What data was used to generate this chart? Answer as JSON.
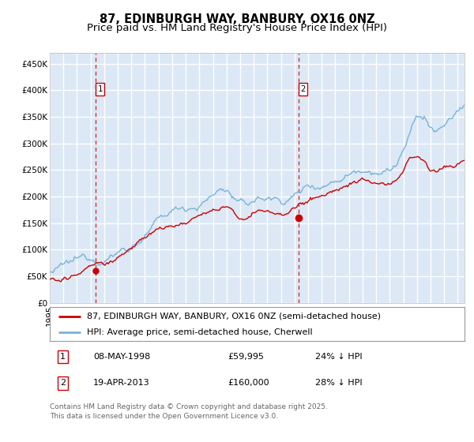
{
  "title": "87, EDINBURGH WAY, BANBURY, OX16 0NZ",
  "subtitle": "Price paid vs. HM Land Registry's House Price Index (HPI)",
  "ylim": [
    0,
    470000
  ],
  "yticks": [
    0,
    50000,
    100000,
    150000,
    200000,
    250000,
    300000,
    350000,
    400000,
    450000
  ],
  "ytick_labels": [
    "£0",
    "£50K",
    "£100K",
    "£150K",
    "£200K",
    "£250K",
    "£300K",
    "£350K",
    "£400K",
    "£450K"
  ],
  "xlim_start": 1995.0,
  "xlim_end": 2025.5,
  "plot_bg_color": "#dce8f5",
  "grid_color": "#ffffff",
  "hpi_line_color": "#7ab3d9",
  "price_line_color": "#cc0000",
  "transaction1_date": 1998.36,
  "transaction1_price": 59995,
  "transaction2_date": 2013.3,
  "transaction2_price": 160000,
  "legend_line1": "87, EDINBURGH WAY, BANBURY, OX16 0NZ (semi-detached house)",
  "legend_line2": "HPI: Average price, semi-detached house, Cherwell",
  "annotation1_text": "08-MAY-1998",
  "annotation1_price": "£59,995",
  "annotation1_hpi": "24% ↓ HPI",
  "annotation2_text": "19-APR-2013",
  "annotation2_price": "£160,000",
  "annotation2_hpi": "28% ↓ HPI",
  "footer": "Contains HM Land Registry data © Crown copyright and database right 2025.\nThis data is licensed under the Open Government Licence v3.0.",
  "title_fontsize": 10.5,
  "subtitle_fontsize": 9.5,
  "tick_fontsize": 7.5,
  "legend_fontsize": 8,
  "annotation_fontsize": 8,
  "footer_fontsize": 6.5,
  "hpi_anchors_x": [
    1995.0,
    1996.0,
    1997.0,
    1998.0,
    1999.0,
    2000.0,
    2001.0,
    2002.0,
    2003.0,
    2004.0,
    2005.0,
    2006.0,
    2007.0,
    2007.8,
    2008.5,
    2009.0,
    2009.5,
    2010.0,
    2011.0,
    2012.0,
    2013.0,
    2014.0,
    2015.0,
    2016.0,
    2017.0,
    2018.0,
    2019.0,
    2020.0,
    2021.0,
    2021.5,
    2022.0,
    2022.5,
    2023.0,
    2023.5,
    2024.0,
    2024.5,
    2025.0,
    2025.5
  ],
  "hpi_anchors_y": [
    57000,
    61000,
    65000,
    71000,
    80000,
    94000,
    108000,
    128000,
    148000,
    162000,
    172000,
    182000,
    198000,
    210000,
    195000,
    178000,
    172000,
    183000,
    185000,
    183000,
    193000,
    210000,
    218000,
    230000,
    248000,
    262000,
    268000,
    268000,
    305000,
    330000,
    355000,
    358000,
    338000,
    328000,
    340000,
    348000,
    360000,
    372000
  ],
  "price_anchors_x": [
    1995.0,
    1996.0,
    1997.0,
    1998.0,
    1999.0,
    2000.0,
    2001.0,
    2002.0,
    2003.0,
    2004.0,
    2005.0,
    2006.0,
    2007.0,
    2007.8,
    2008.5,
    2009.0,
    2009.5,
    2010.0,
    2011.0,
    2012.0,
    2013.0,
    2014.0,
    2015.0,
    2016.0,
    2017.0,
    2018.0,
    2019.0,
    2020.0,
    2021.0,
    2021.5,
    2022.0,
    2022.5,
    2023.0,
    2023.5,
    2024.0,
    2024.5,
    2025.0,
    2025.5
  ],
  "price_anchors_y": [
    44000,
    47000,
    51000,
    56000,
    64000,
    73000,
    86000,
    103000,
    121000,
    132000,
    138000,
    147000,
    158000,
    168000,
    157000,
    142000,
    137000,
    145000,
    148000,
    143000,
    150000,
    164000,
    170000,
    183000,
    195000,
    207000,
    210000,
    210000,
    238000,
    258000,
    265000,
    262000,
    248000,
    245000,
    252000,
    255000,
    262000,
    268000
  ]
}
